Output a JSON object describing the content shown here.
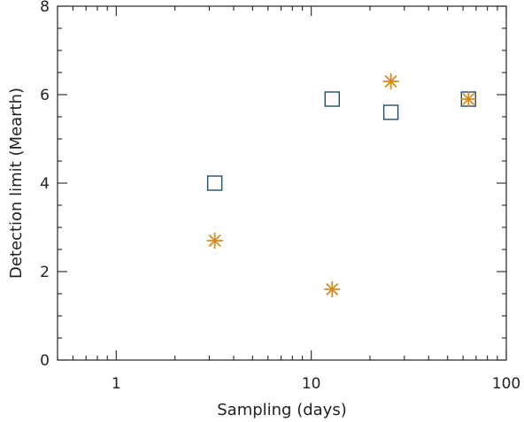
{
  "chart_data": {
    "type": "scatter",
    "xlabel": "Sampling (days)",
    "ylabel": "Detection limit (Mearth)",
    "xscale": "log",
    "xlim": [
      0.5,
      100
    ],
    "ylim": [
      0,
      8
    ],
    "x_tick_labels": [
      "1",
      "10",
      "100"
    ],
    "y_tick_labels": [
      "0",
      "2",
      "4",
      "6",
      "8"
    ],
    "grid": false,
    "series": [
      {
        "marker": "square",
        "color": "#1f4e6b",
        "points": [
          {
            "x": 3.2,
            "y": 4.0
          },
          {
            "x": 12.8,
            "y": 5.9
          },
          {
            "x": 25.6,
            "y": 5.6
          },
          {
            "x": 64,
            "y": 5.9
          }
        ]
      },
      {
        "marker": "asterisk",
        "color": "#d98a1c",
        "points": [
          {
            "x": 3.2,
            "y": 2.7
          },
          {
            "x": 12.8,
            "y": 1.6
          },
          {
            "x": 25.6,
            "y": 6.3
          },
          {
            "x": 64,
            "y": 5.9
          }
        ]
      }
    ]
  }
}
